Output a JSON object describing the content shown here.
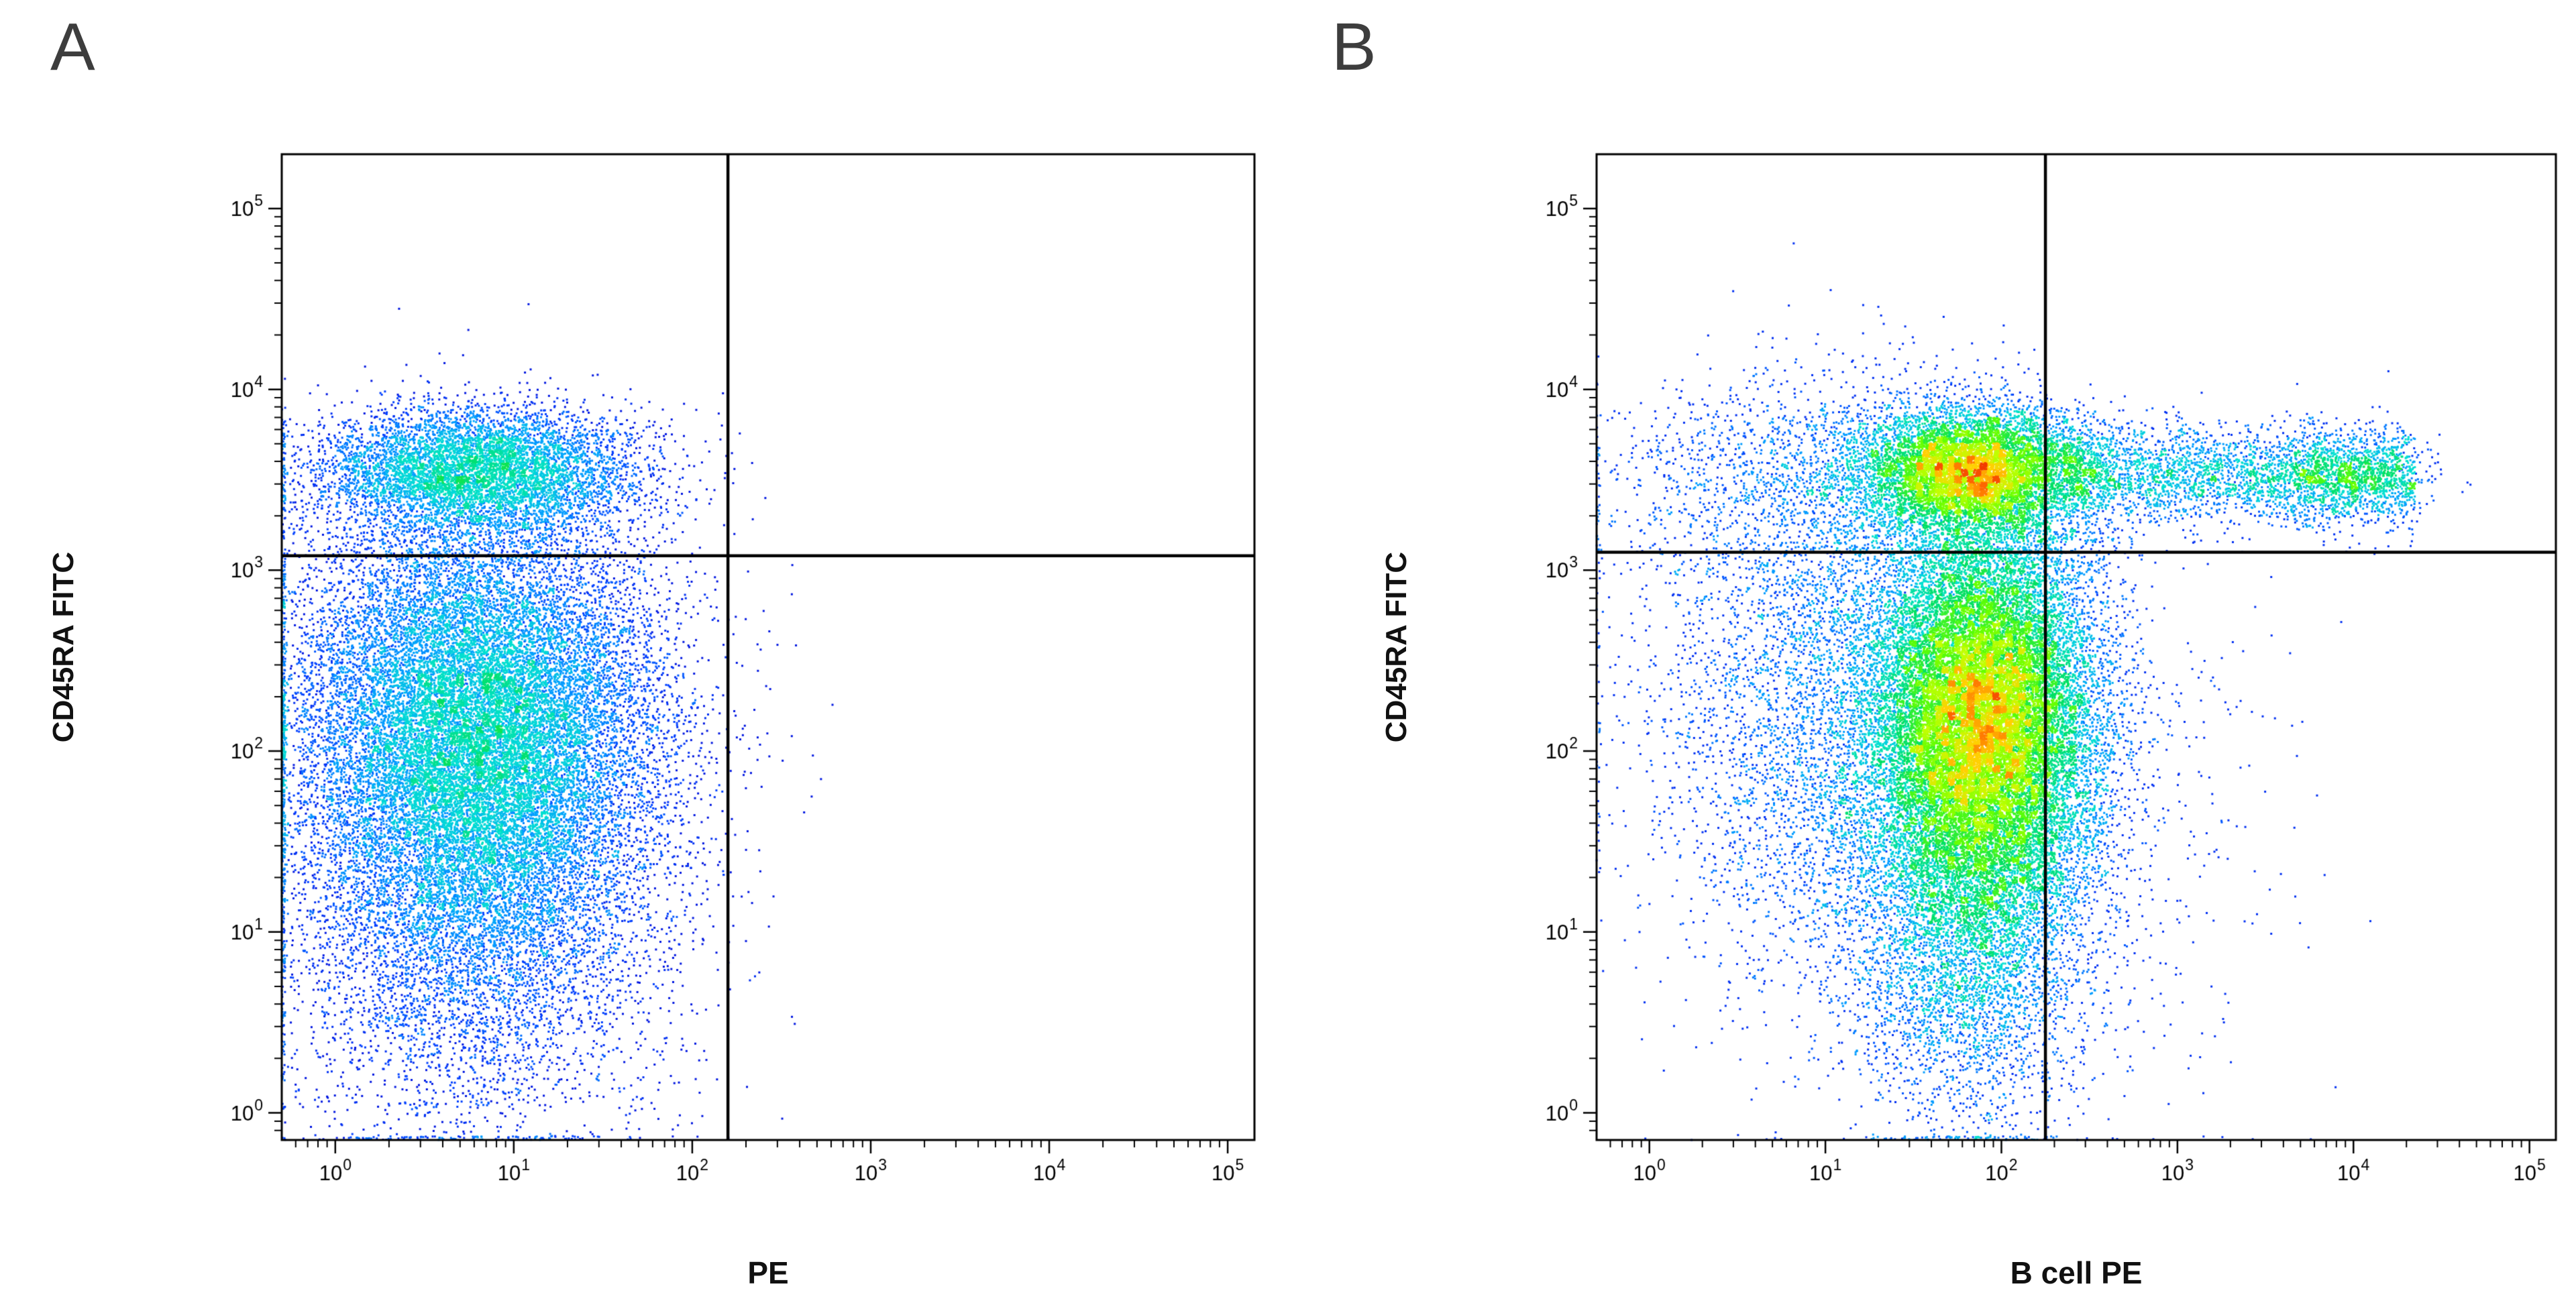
{
  "chart_data": {
    "type": "scatter",
    "subtype": "flow-cytometry-pseudocolor-density-plot",
    "x_scale": "log",
    "y_scale": "log",
    "x_range_exp": [
      -0.3,
      5.15
    ],
    "y_range_exp": [
      -0.15,
      5.3
    ],
    "tick_exponents": [
      0,
      1,
      2,
      3,
      4,
      5
    ],
    "tick_label_base": "10",
    "background_color": "#ffffff",
    "frame_color": "#000000",
    "gate_line_color": "#000000",
    "colormap": [
      [
        0.0,
        "#000070"
      ],
      [
        0.1,
        "#0000d0"
      ],
      [
        0.22,
        "#0040ff"
      ],
      [
        0.35,
        "#00a0ff"
      ],
      [
        0.47,
        "#00e0d0"
      ],
      [
        0.58,
        "#00e060"
      ],
      [
        0.68,
        "#60ff00"
      ],
      [
        0.78,
        "#c0ff00"
      ],
      [
        0.86,
        "#ffd000"
      ],
      [
        0.93,
        "#ff7000"
      ],
      [
        1.0,
        "#e81000"
      ]
    ],
    "panels": [
      {
        "letter": "A",
        "xlabel": "PE",
        "ylabel": "CD45RA FITC",
        "quadrant_gate": {
          "x_exp": 2.2,
          "y_exp": 3.08
        },
        "peak_density_color_t": 0.6,
        "seed": 1337,
        "populations": [
          {
            "name": "CD45RA-negative main cluster",
            "cx_exp": 0.8,
            "sx": 0.5,
            "cy_exp": 2.05,
            "sy": 0.58,
            "n": 21000
          },
          {
            "name": "low FITC tail",
            "cx_exp": 0.75,
            "sx": 0.55,
            "cy_exp": 0.9,
            "sy": 0.55,
            "n": 4000
          },
          {
            "name": "CD45RA-positive cluster",
            "cx_exp": 0.8,
            "sx": 0.45,
            "cy_exp": 3.55,
            "sy": 0.17,
            "n": 6500
          },
          {
            "name": "inter-cluster sparse",
            "cx_exp": 0.7,
            "sx": 0.5,
            "cy_exp": 2.9,
            "sy": 0.35,
            "n": 1200
          }
        ]
      },
      {
        "letter": "B",
        "xlabel": "B cell PE",
        "ylabel": "CD45RA FITC",
        "quadrant_gate": {
          "x_exp": 2.25,
          "y_exp": 3.1
        },
        "peak_density_color_t": 0.97,
        "seed": 4242,
        "populations": [
          {
            "name": "CD45RA-negative main cluster",
            "cx_exp": 1.9,
            "sx": 0.32,
            "cy_exp": 2.15,
            "sy": 0.58,
            "n": 24000
          },
          {
            "name": "left scatter",
            "cx_exp": 1.1,
            "sx": 0.55,
            "cy_exp": 2.2,
            "sy": 0.75,
            "n": 5000
          },
          {
            "name": "low FITC tail",
            "cx_exp": 1.8,
            "sx": 0.35,
            "cy_exp": 0.9,
            "sy": 0.5,
            "n": 3500
          },
          {
            "name": "CD45RA-positive cluster",
            "cx_exp": 1.85,
            "sx": 0.33,
            "cy_exp": 3.55,
            "sy": 0.17,
            "n": 8000
          },
          {
            "name": "upper-left scatter",
            "cx_exp": 0.9,
            "sx": 0.6,
            "cy_exp": 3.5,
            "sy": 0.3,
            "n": 1500
          },
          {
            "name": "B cell double-positive streak",
            "cx_exp": 3.35,
            "sx": 1.0,
            "cy_exp": 3.52,
            "sy": 0.13,
            "n": 3000,
            "x_dist": "uniform"
          },
          {
            "name": "streak end blob",
            "cx_exp": 3.95,
            "sx": 0.22,
            "cy_exp": 3.52,
            "sy": 0.13,
            "n": 900
          },
          {
            "name": "sparse right lower",
            "cx_exp": 2.7,
            "sx": 0.5,
            "cy_exp": 1.6,
            "sy": 0.8,
            "n": 350
          }
        ]
      }
    ]
  }
}
